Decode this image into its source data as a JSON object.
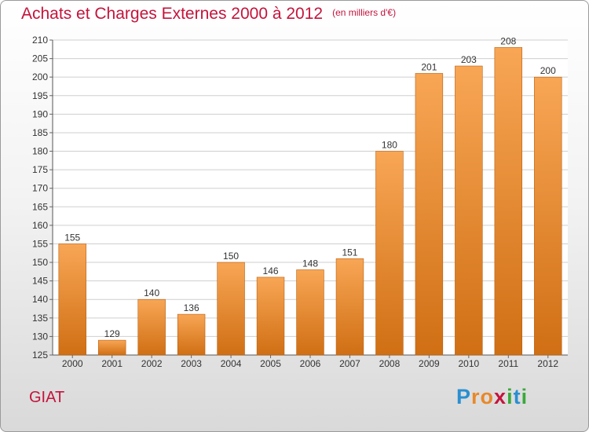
{
  "title": "Achats et Charges Externes 2000 à 2012",
  "subtitle": "(en milliers d'€)",
  "city": "GIAT",
  "logo": {
    "letters": [
      "P",
      "r",
      "o",
      "x",
      "i",
      "t",
      "i"
    ],
    "colors": [
      "#2a8fd0",
      "#e8882a",
      "#e8882a",
      "#c4143c",
      "#3aa83a",
      "#2a8fd0",
      "#3aa83a"
    ]
  },
  "colors": {
    "title": "#c4143c",
    "bar_top": "#f8a655",
    "bar_bottom": "#d06f14",
    "grid": "#cfcfcf"
  },
  "chart_data": {
    "type": "bar",
    "categories": [
      "2000",
      "2001",
      "2002",
      "2003",
      "2004",
      "2005",
      "2006",
      "2007",
      "2008",
      "2009",
      "2010",
      "2011",
      "2012"
    ],
    "values": [
      155,
      129,
      140,
      136,
      150,
      146,
      148,
      151,
      180,
      201,
      203,
      208,
      200
    ],
    "ylim": [
      125,
      210
    ],
    "yticks": [
      125,
      130,
      135,
      140,
      145,
      150,
      155,
      160,
      165,
      170,
      175,
      180,
      185,
      190,
      195,
      200,
      205,
      210
    ],
    "grid": "horizontal",
    "data_labels": true
  }
}
